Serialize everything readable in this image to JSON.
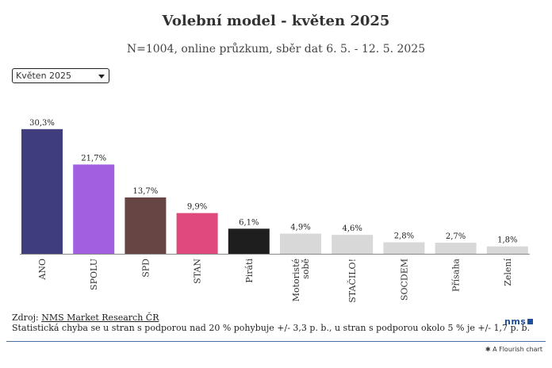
{
  "header": {
    "title": "Volební model - květen 2025",
    "subtitle": "N=1004, online průzkum, sběr dat 6. 5. - 12. 5. 2025"
  },
  "filter": {
    "selected": "Květen 2025"
  },
  "chart_data": {
    "type": "bar",
    "categories": [
      "ANO",
      "SPOLU",
      "SPD",
      "STAN",
      "Piráti",
      "Motoristé sobě",
      "STAČILO!",
      "SOCDEM",
      "Přísaha",
      "Zelení"
    ],
    "values": [
      30.3,
      21.7,
      13.7,
      9.9,
      6.1,
      4.9,
      4.6,
      2.8,
      2.7,
      1.8
    ],
    "value_labels": [
      "30,3%",
      "21,7%",
      "13,7%",
      "9,9%",
      "6,1%",
      "4,9%",
      "4,6%",
      "2,8%",
      "2,7%",
      "1,8%"
    ],
    "colors": [
      "#3f3d7d",
      "#a060e0",
      "#684545",
      "#e0497d",
      "#1e1e1e",
      "#d8d8d8",
      "#d8d8d8",
      "#d8d8d8",
      "#d8d8d8",
      "#d8d8d8"
    ],
    "ylim": [
      0,
      32
    ],
    "grid": false,
    "title": "Volební model - květen 2025",
    "xlabel": "",
    "ylabel": ""
  },
  "footer": {
    "source_prefix": "Zdroj: ",
    "source_link": "NMS Market Research ČR",
    "note": "Statistická chyba se u stran s podporou nad 20 % pohybuje +/- 3,3 p. b., u stran s podporou okolo 5 % je +/- 1,7 p. b.",
    "logo_text": "nms",
    "credit": "A Flourish chart"
  }
}
